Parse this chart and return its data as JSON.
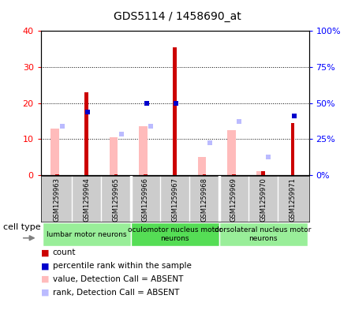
{
  "title": "GDS5114 / 1458690_at",
  "samples": [
    "GSM1259963",
    "GSM1259964",
    "GSM1259965",
    "GSM1259966",
    "GSM1259967",
    "GSM1259968",
    "GSM1259969",
    "GSM1259970",
    "GSM1259971"
  ],
  "count": [
    0.3,
    23.0,
    0.3,
    0.3,
    35.5,
    0.3,
    0.3,
    1.0,
    14.5
  ],
  "percentile_rank": [
    0,
    17.5,
    0,
    20.0,
    20.0,
    0,
    0,
    0,
    16.5
  ],
  "value_absent": [
    13.0,
    0,
    10.5,
    13.5,
    0,
    5.0,
    12.5,
    1.0,
    0
  ],
  "rank_absent": [
    13.5,
    0,
    11.5,
    13.5,
    0,
    9.0,
    15.0,
    5.0,
    0
  ],
  "cell_types": [
    {
      "label": "lumbar motor neurons",
      "start": 0,
      "end": 3,
      "color": "#99ee99"
    },
    {
      "label": "oculomotor nucleus motor\nneurons",
      "start": 3,
      "end": 6,
      "color": "#55dd55"
    },
    {
      "label": "dorsolateral nucleus motor\nneurons",
      "start": 6,
      "end": 9,
      "color": "#99ee99"
    }
  ],
  "ylim_left": [
    0,
    40
  ],
  "ylim_right": [
    0,
    100
  ],
  "yticks_left": [
    0,
    10,
    20,
    30,
    40
  ],
  "yticks_right": [
    0,
    25,
    50,
    75,
    100
  ],
  "ytick_labels_left": [
    "0",
    "10",
    "20",
    "30",
    "40"
  ],
  "ytick_labels_right": [
    "0%",
    "25%",
    "50%",
    "75%",
    "100%"
  ],
  "legend_items": [
    {
      "label": "count",
      "color": "#cc0000"
    },
    {
      "label": "percentile rank within the sample",
      "color": "#0000cc"
    },
    {
      "label": "value, Detection Call = ABSENT",
      "color": "#ffbbbb"
    },
    {
      "label": "rank, Detection Call = ABSENT",
      "color": "#bbbbff"
    }
  ],
  "count_color": "#cc0000",
  "percentile_color": "#0000cc",
  "value_absent_color": "#ffbbbb",
  "rank_absent_color": "#bbbbff",
  "cell_type_label": "cell type",
  "background_color": "#ffffff",
  "plot_bg_color": "#ffffff",
  "sample_box_color": "#cccccc",
  "grid_color": "#000000"
}
